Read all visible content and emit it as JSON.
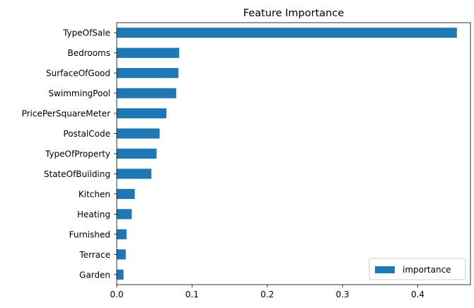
{
  "chart_data": {
    "type": "bar",
    "orientation": "horizontal",
    "title": "Feature Importance",
    "xlabel": "",
    "ylabel": "",
    "categories": [
      "TypeOfSale",
      "Bedrooms",
      "SurfaceOfGood",
      "SwimmingPool",
      "PricePerSquareMeter",
      "PostalCode",
      "TypeOfProperty",
      "StateOfBuilding",
      "Kitchen",
      "Heating",
      "Furnished",
      "Terrace",
      "Garden"
    ],
    "series": [
      {
        "name": "importance",
        "values": [
          0.452,
          0.083,
          0.082,
          0.079,
          0.066,
          0.057,
          0.053,
          0.046,
          0.024,
          0.02,
          0.013,
          0.012,
          0.009
        ]
      }
    ],
    "xlim": [
      0,
      0.47
    ],
    "xticks": [
      "0.0",
      "0.1",
      "0.2",
      "0.3",
      "0.4"
    ],
    "xtick_values": [
      0,
      0.1,
      0.2,
      0.3,
      0.4
    ],
    "grid": false,
    "legend_position": "lower-right",
    "bar_color": "#1f77b4"
  }
}
